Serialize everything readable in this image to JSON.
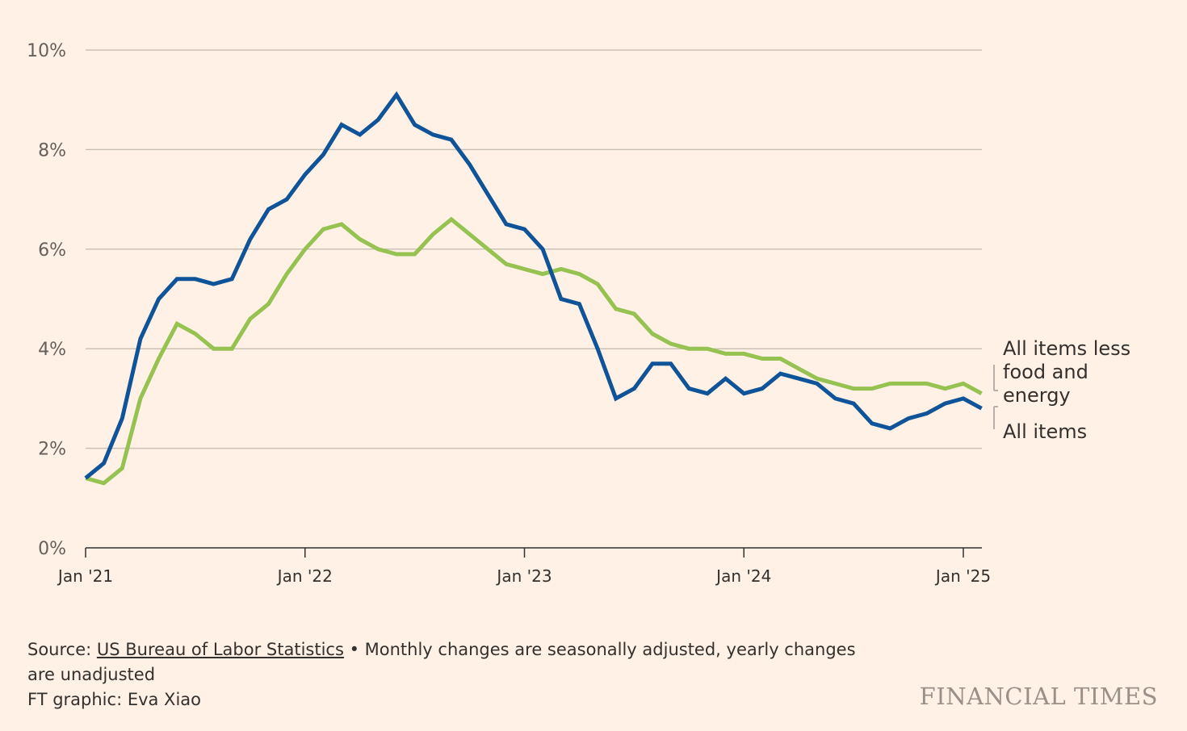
{
  "chart_data": {
    "type": "line",
    "x": [
      "2021-01",
      "2021-02",
      "2021-03",
      "2021-04",
      "2021-05",
      "2021-06",
      "2021-07",
      "2021-08",
      "2021-09",
      "2021-10",
      "2021-11",
      "2021-12",
      "2022-01",
      "2022-02",
      "2022-03",
      "2022-04",
      "2022-05",
      "2022-06",
      "2022-07",
      "2022-08",
      "2022-09",
      "2022-10",
      "2022-11",
      "2022-12",
      "2023-01",
      "2023-02",
      "2023-03",
      "2023-04",
      "2023-05",
      "2023-06",
      "2023-07",
      "2023-08",
      "2023-09",
      "2023-10",
      "2023-11",
      "2023-12",
      "2024-01",
      "2024-02",
      "2024-03",
      "2024-04",
      "2024-05",
      "2024-06",
      "2024-07",
      "2024-08",
      "2024-09",
      "2024-10",
      "2024-11",
      "2024-12",
      "2025-01",
      "2025-02"
    ],
    "series": [
      {
        "name": "All items",
        "color": "#0f5499",
        "values": [
          1.4,
          1.7,
          2.6,
          4.2,
          5.0,
          5.4,
          5.4,
          5.3,
          5.4,
          6.2,
          6.8,
          7.0,
          7.5,
          7.9,
          8.5,
          8.3,
          8.6,
          9.1,
          8.5,
          8.3,
          8.2,
          7.7,
          7.1,
          6.5,
          6.4,
          6.0,
          5.0,
          4.9,
          4.0,
          3.0,
          3.2,
          3.7,
          3.7,
          3.2,
          3.1,
          3.4,
          3.1,
          3.2,
          3.5,
          3.4,
          3.3,
          3.0,
          2.9,
          2.5,
          2.4,
          2.6,
          2.7,
          2.9,
          3.0,
          2.8
        ]
      },
      {
        "name": "All items less food and energy",
        "color": "#96c251",
        "values": [
          1.4,
          1.3,
          1.6,
          3.0,
          3.8,
          4.5,
          4.3,
          4.0,
          4.0,
          4.6,
          4.9,
          5.5,
          6.0,
          6.4,
          6.5,
          6.2,
          6.0,
          5.9,
          5.9,
          6.3,
          6.6,
          6.3,
          6.0,
          5.7,
          5.6,
          5.5,
          5.6,
          5.5,
          5.3,
          4.8,
          4.7,
          4.3,
          4.1,
          4.0,
          4.0,
          3.9,
          3.9,
          3.8,
          3.8,
          3.6,
          3.4,
          3.3,
          3.2,
          3.2,
          3.3,
          3.3,
          3.3,
          3.2,
          3.3,
          3.1
        ]
      }
    ],
    "ylim": [
      0,
      10
    ],
    "y_ticks": [
      "0%",
      "2%",
      "4%",
      "6%",
      "8%",
      "10%"
    ],
    "x_ticks": [
      "Jan '21",
      "Jan '22",
      "Jan '23",
      "Jan '24",
      "Jan '25"
    ],
    "series_labels": {
      "core": [
        "All items less",
        "food and",
        "energy"
      ],
      "all": "All items"
    },
    "grid": true
  },
  "footer": {
    "source_prefix": "Source: ",
    "source_link": "US Bureau of Labor Statistics",
    "source_note": " • Monthly changes are seasonally adjusted, yearly changes are unadjusted",
    "credit": "FT graphic: Eva Xiao"
  },
  "brand": "FINANCIAL TIMES"
}
